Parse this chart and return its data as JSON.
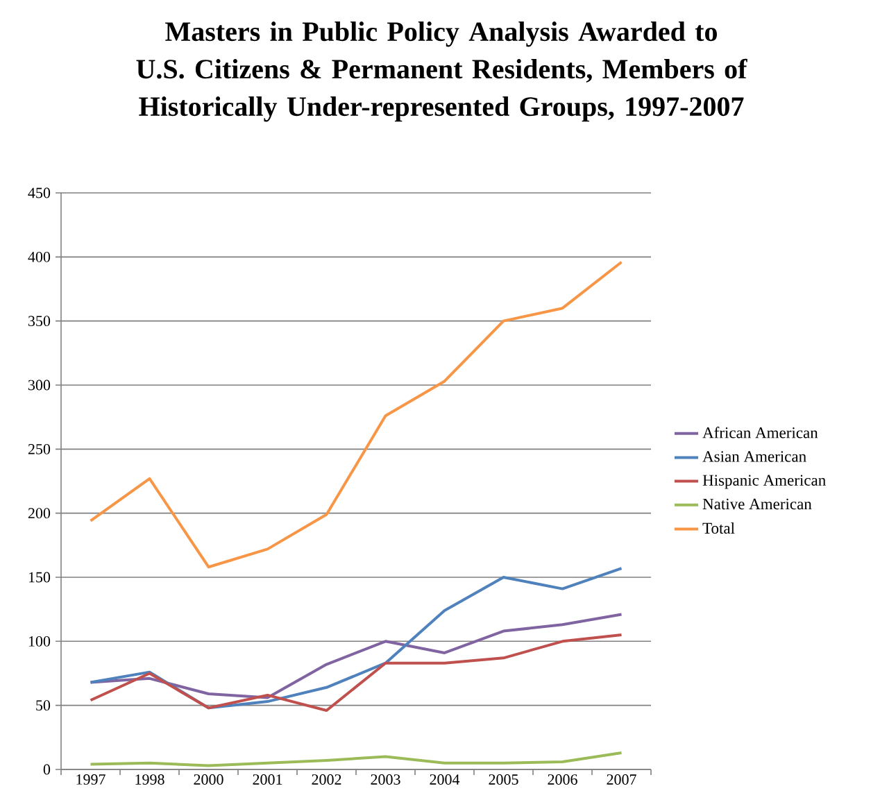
{
  "chart_data": {
    "type": "line",
    "title": "Masters in Public Policy Analysis Awarded to U.S. Citizens & Permanent Residents, Members of Historically Under-represented Groups, 1997-2007",
    "categories": [
      "1997",
      "1998",
      "2000",
      "2001",
      "2002",
      "2003",
      "2004",
      "2005",
      "2006",
      "2007"
    ],
    "series": [
      {
        "name": "African American",
        "color": "#8064a2",
        "values": [
          68,
          71,
          59,
          56,
          82,
          100,
          91,
          108,
          113,
          121
        ]
      },
      {
        "name": "Asian American",
        "color": "#4f81bd",
        "values": [
          68,
          76,
          48,
          53,
          64,
          83,
          124,
          150,
          141,
          157
        ]
      },
      {
        "name": "Hispanic American",
        "color": "#c0504d",
        "values": [
          54,
          75,
          48,
          58,
          46,
          83,
          83,
          87,
          100,
          105
        ]
      },
      {
        "name": "Native American",
        "color": "#9bbb59",
        "values": [
          4,
          5,
          3,
          5,
          7,
          10,
          5,
          5,
          6,
          13
        ]
      },
      {
        "name": "Total",
        "color": "#f79646",
        "values": [
          194,
          227,
          158,
          172,
          199,
          276,
          303,
          350,
          360,
          396
        ]
      }
    ],
    "ylim": [
      0,
      450
    ],
    "yticks": [
      0,
      50,
      100,
      150,
      200,
      250,
      300,
      350,
      400,
      450
    ],
    "grid": "y",
    "legend": "right",
    "marker": "none",
    "line_style": "solid"
  }
}
